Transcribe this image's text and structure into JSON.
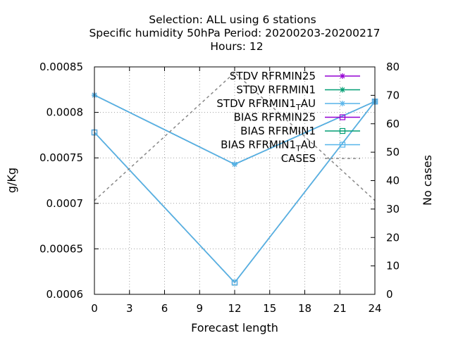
{
  "chart_data": {
    "type": "line",
    "title_lines": [
      "Selection: ALL using     6 stations",
      "Specific humidity 50hPa   Period: 20200203-20200217",
      "Hours:  12"
    ],
    "xlabel": "Forecast length",
    "ylabel": "g/Kg",
    "y2label": "No cases",
    "xlim": [
      0,
      24
    ],
    "xticks": [
      "0",
      "3",
      "6",
      "9",
      "12",
      "15",
      "18",
      "21",
      "24"
    ],
    "xtick_values": [
      0,
      3,
      6,
      9,
      12,
      15,
      18,
      21,
      24
    ],
    "ylim": [
      0.0006,
      0.00085
    ],
    "yticks": [
      "0.0006",
      "0.00065",
      "0.0007",
      "0.00075",
      "0.0008",
      "0.00085"
    ],
    "ytick_values": [
      0.0006,
      0.00065,
      0.0007,
      0.00075,
      0.0008,
      0.00085
    ],
    "y2lim": [
      0,
      80
    ],
    "y2ticks": [
      "0",
      "10",
      "20",
      "30",
      "40",
      "50",
      "60",
      "70",
      "80"
    ],
    "y2tick_values": [
      0,
      10,
      20,
      30,
      40,
      50,
      60,
      70,
      80
    ],
    "grid": true,
    "legend_position": "top-right",
    "x": [
      0,
      12,
      24
    ],
    "series": [
      {
        "name": "STDV RFRMIN25",
        "legend_main": "STDV RFRMIN25",
        "legend_sub": "",
        "legend_after": "",
        "color": "#9400d3",
        "marker": "star",
        "axis": "y",
        "dash": false,
        "values": [
          0.000819,
          0.000743,
          0.000812
        ]
      },
      {
        "name": "STDV RFRMIN1",
        "legend_main": "STDV RFRMIN1",
        "legend_sub": "",
        "legend_after": "",
        "color": "#009e73",
        "marker": "star",
        "axis": "y",
        "dash": false,
        "values": [
          0.000819,
          0.000743,
          0.000812
        ]
      },
      {
        "name": "STDV RFRMIN1_T AU",
        "legend_main": "STDV RFRMIN1",
        "legend_sub": "T",
        "legend_after": "AU",
        "color": "#56b4e9",
        "marker": "star",
        "axis": "y",
        "dash": false,
        "values": [
          0.000819,
          0.000743,
          0.000812
        ]
      },
      {
        "name": "BIAS RFRMIN25",
        "legend_main": "BIAS RFRMIN25",
        "legend_sub": "",
        "legend_after": "",
        "color": "#9400d3",
        "marker": "square",
        "axis": "y",
        "dash": false,
        "values": [
          0.000778,
          0.000613,
          0.000812
        ]
      },
      {
        "name": "BIAS RFRMIN1",
        "legend_main": "BIAS RFRMIN1",
        "legend_sub": "",
        "legend_after": "",
        "color": "#009e73",
        "marker": "square",
        "axis": "y",
        "dash": false,
        "values": [
          0.000778,
          0.000613,
          0.000812
        ]
      },
      {
        "name": "BIAS RFRMIN1_T AU",
        "legend_main": "BIAS RFRMIN1",
        "legend_sub": "T",
        "legend_after": "AU",
        "color": "#56b4e9",
        "marker": "square",
        "axis": "y",
        "dash": false,
        "values": [
          0.000778,
          0.000613,
          0.000812
        ]
      },
      {
        "name": "CASES",
        "legend_main": "CASES",
        "legend_sub": "",
        "legend_after": "",
        "color": "#888888",
        "marker": "none",
        "axis": "y2",
        "dash": true,
        "values": [
          33,
          78,
          33
        ]
      }
    ]
  }
}
